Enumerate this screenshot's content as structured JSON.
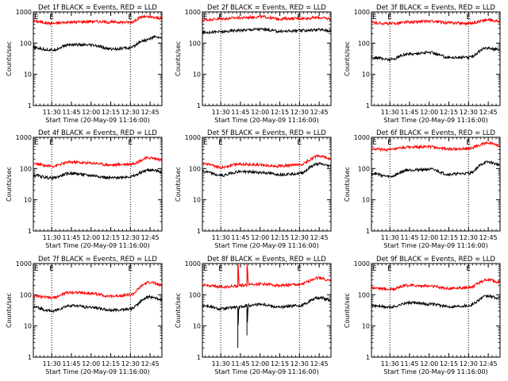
{
  "chart_data": [
    {
      "type": "line",
      "title": "Det 1f BLACK = Events, RED = LLD",
      "ylabel": "Counts/sec",
      "xlabel": "Start Time (20-May-09 11:16:00)",
      "xticks": [
        "11:30",
        "11:45",
        "12:00",
        "12:15",
        "12:30",
        "12:45"
      ],
      "yticks": [
        "1",
        "10",
        "100",
        "1000"
      ],
      "ylim": [
        1,
        1000
      ],
      "yscale": "log",
      "xlim": [
        "11:16",
        "12:54"
      ],
      "markers": [
        "11:30",
        "12:30"
      ],
      "marker_labels": [
        "E",
        "E"
      ],
      "series": [
        {
          "color": "#ff0000",
          "x": [
            "11:16",
            "11:30",
            "11:45",
            "12:00",
            "12:15",
            "12:30",
            "12:40",
            "12:50",
            "12:54"
          ],
          "values": [
            500,
            430,
            470,
            500,
            470,
            470,
            700,
            650,
            600
          ]
        },
        {
          "color": "#000000",
          "x": [
            "11:16",
            "11:30",
            "11:45",
            "12:00",
            "12:15",
            "12:30",
            "12:40",
            "12:50",
            "12:54"
          ],
          "values": [
            70,
            60,
            90,
            85,
            65,
            70,
            120,
            160,
            140
          ]
        }
      ]
    },
    {
      "type": "line",
      "title": "Det 2f BLACK = Events, RED = LLD",
      "ylabel": "Counts/sec",
      "xlabel": "Start Time (20-May-09 11:16:00)",
      "xticks": [
        "11:30",
        "11:45",
        "12:00",
        "12:15",
        "12:30",
        "12:45"
      ],
      "yticks": [
        "1",
        "10",
        "100",
        "1000"
      ],
      "ylim": [
        1,
        1000
      ],
      "yscale": "log",
      "xlim": [
        "11:16",
        "12:54"
      ],
      "markers": [
        "11:30",
        "12:30"
      ],
      "marker_labels": [
        "E",
        "E"
      ],
      "series": [
        {
          "color": "#ff0000",
          "x": [
            "11:16",
            "11:30",
            "11:45",
            "12:00",
            "12:15",
            "12:30",
            "12:45",
            "12:54"
          ],
          "values": [
            550,
            600,
            650,
            700,
            600,
            620,
            650,
            600
          ]
        },
        {
          "color": "#000000",
          "x": [
            "11:16",
            "11:30",
            "11:45",
            "12:00",
            "12:15",
            "12:30",
            "12:45",
            "12:54"
          ],
          "values": [
            220,
            230,
            260,
            280,
            240,
            250,
            270,
            250
          ]
        }
      ]
    },
    {
      "type": "line",
      "title": "Det 3f BLACK = Events, RED = LLD",
      "ylabel": "Counts/sec",
      "xlabel": "Start Time (20-May-09 11:16:00)",
      "xticks": [
        "11:30",
        "11:45",
        "12:00",
        "12:15",
        "12:30",
        "12:45"
      ],
      "yticks": [
        "1",
        "10",
        "100",
        "1000"
      ],
      "ylim": [
        1,
        1000
      ],
      "yscale": "log",
      "xlim": [
        "11:16",
        "12:54"
      ],
      "markers": [
        "11:30",
        "12:30"
      ],
      "marker_labels": [
        "E",
        "E"
      ],
      "series": [
        {
          "color": "#ff0000",
          "x": [
            "11:16",
            "11:30",
            "11:45",
            "12:00",
            "12:15",
            "12:30",
            "12:45",
            "12:54"
          ],
          "values": [
            450,
            420,
            470,
            500,
            450,
            430,
            550,
            500
          ]
        },
        {
          "color": "#000000",
          "x": [
            "11:16",
            "11:30",
            "11:45",
            "12:00",
            "12:15",
            "12:30",
            "12:45",
            "12:54"
          ],
          "values": [
            35,
            30,
            45,
            50,
            35,
            35,
            70,
            60
          ]
        }
      ]
    },
    {
      "type": "line",
      "title": "Det 4f BLACK = Events, RED = LLD",
      "ylabel": "Counts/sec",
      "xlabel": "Start Time (20-May-09 11:16:00)",
      "xticks": [
        "11:30",
        "11:45",
        "12:00",
        "12:15",
        "12:30",
        "12:45"
      ],
      "yticks": [
        "1",
        "10",
        "100",
        "1000"
      ],
      "ylim": [
        1,
        1000
      ],
      "yscale": "log",
      "xlim": [
        "11:16",
        "12:54"
      ],
      "markers": [
        "11:30",
        "12:30"
      ],
      "marker_labels": [
        "E",
        "E"
      ],
      "series": [
        {
          "color": "#ff0000",
          "x": [
            "11:16",
            "11:30",
            "11:45",
            "12:00",
            "12:15",
            "12:30",
            "12:45",
            "12:54"
          ],
          "values": [
            140,
            120,
            160,
            150,
            130,
            140,
            220,
            190
          ]
        },
        {
          "color": "#000000",
          "x": [
            "11:16",
            "11:30",
            "11:45",
            "12:00",
            "12:15",
            "12:30",
            "12:45",
            "12:54"
          ],
          "values": [
            60,
            50,
            70,
            60,
            50,
            55,
            90,
            80
          ]
        }
      ]
    },
    {
      "type": "line",
      "title": "Det 5f BLACK = Events, RED = LLD",
      "ylabel": "Counts/sec",
      "xlabel": "Start Time (20-May-09 11:16:00)",
      "xticks": [
        "11:30",
        "11:45",
        "12:00",
        "12:15",
        "12:30",
        "12:45"
      ],
      "yticks": [
        "1",
        "10",
        "100",
        "1000"
      ],
      "ylim": [
        1,
        1000
      ],
      "yscale": "log",
      "xlim": [
        "11:16",
        "12:54"
      ],
      "markers": [
        "11:30",
        "12:30"
      ],
      "marker_labels": [
        "E",
        "E"
      ],
      "series": [
        {
          "color": "#ff0000",
          "x": [
            "11:16",
            "11:30",
            "11:45",
            "12:00",
            "12:15",
            "12:30",
            "12:45",
            "12:54"
          ],
          "values": [
            140,
            110,
            140,
            130,
            120,
            130,
            250,
            200
          ]
        },
        {
          "color": "#000000",
          "x": [
            "11:16",
            "11:30",
            "11:45",
            "12:00",
            "12:15",
            "12:30",
            "12:45",
            "12:54"
          ],
          "values": [
            80,
            60,
            80,
            75,
            65,
            70,
            140,
            120
          ]
        }
      ]
    },
    {
      "type": "line",
      "title": "Det 6f BLACK = Events, RED = LLD",
      "ylabel": "Counts/sec",
      "xlabel": "Start Time (20-May-09 11:16:00)",
      "xticks": [
        "11:30",
        "11:45",
        "12:00",
        "12:15",
        "12:30",
        "12:45"
      ],
      "yticks": [
        "1",
        "10",
        "100",
        "1000"
      ],
      "ylim": [
        1,
        1000
      ],
      "yscale": "log",
      "xlim": [
        "11:16",
        "12:54"
      ],
      "markers": [
        "11:30",
        "12:30"
      ],
      "marker_labels": [
        "E",
        "E"
      ],
      "series": [
        {
          "color": "#ff0000",
          "x": [
            "11:16",
            "11:30",
            "11:45",
            "12:00",
            "12:15",
            "12:30",
            "12:45",
            "12:54"
          ],
          "values": [
            420,
            400,
            480,
            500,
            420,
            440,
            650,
            550
          ]
        },
        {
          "color": "#000000",
          "x": [
            "11:16",
            "11:30",
            "11:45",
            "12:00",
            "12:15",
            "12:30",
            "12:45",
            "12:54"
          ],
          "values": [
            70,
            55,
            90,
            95,
            65,
            70,
            160,
            130
          ]
        }
      ]
    },
    {
      "type": "line",
      "title": "Det 7f BLACK = Events, RED = LLD",
      "ylabel": "Counts/sec",
      "xlabel": "Start Time (20-May-09 11:16:00)",
      "xticks": [
        "11:30",
        "11:45",
        "12:00",
        "12:15",
        "12:30",
        "12:45"
      ],
      "yticks": [
        "1",
        "10",
        "100",
        "1000"
      ],
      "ylim": [
        1,
        1000
      ],
      "yscale": "log",
      "xlim": [
        "11:16",
        "12:54"
      ],
      "markers": [
        "11:30",
        "12:30"
      ],
      "marker_labels": [
        "E",
        "E"
      ],
      "series": [
        {
          "color": "#ff0000",
          "x": [
            "11:16",
            "11:30",
            "11:45",
            "12:00",
            "12:15",
            "12:30",
            "12:45",
            "12:54"
          ],
          "values": [
            90,
            80,
            120,
            110,
            90,
            100,
            250,
            200
          ]
        },
        {
          "color": "#000000",
          "x": [
            "11:16",
            "11:30",
            "11:45",
            "12:00",
            "12:15",
            "12:30",
            "12:45",
            "12:54"
          ],
          "values": [
            40,
            30,
            45,
            40,
            32,
            35,
            85,
            70
          ]
        }
      ]
    },
    {
      "type": "line",
      "title": "Det 8f BLACK = Events, RED = LLD",
      "ylabel": "Counts/sec",
      "xlabel": "Start Time (20-May-09 11:16:00)",
      "xticks": [
        "11:30",
        "11:45",
        "12:00",
        "12:15",
        "12:30",
        "12:45"
      ],
      "yticks": [
        "1",
        "10",
        "100",
        "1000"
      ],
      "ylim": [
        1,
        1000
      ],
      "yscale": "log",
      "xlim": [
        "11:16",
        "12:54"
      ],
      "markers": [
        "11:30",
        "12:30"
      ],
      "marker_labels": [
        "E",
        "E"
      ],
      "series": [
        {
          "color": "#ff0000",
          "x": [
            "11:16",
            "11:30",
            "11:43",
            "11:43",
            "11:44",
            "11:50",
            "11:50",
            "11:51",
            "12:00",
            "12:15",
            "12:30",
            "12:45",
            "12:54"
          ],
          "values": [
            200,
            180,
            190,
            1000,
            200,
            200,
            1000,
            220,
            220,
            200,
            210,
            350,
            280
          ]
        },
        {
          "color": "#000000",
          "x": [
            "11:16",
            "11:30",
            "11:43",
            "11:43",
            "11:44",
            "11:50",
            "11:50",
            "11:51",
            "12:00",
            "12:15",
            "12:30",
            "12:45",
            "12:54"
          ],
          "values": [
            45,
            35,
            40,
            2,
            40,
            45,
            5,
            45,
            50,
            40,
            45,
            80,
            70
          ]
        }
      ]
    },
    {
      "type": "line",
      "title": "Det 9f BLACK = Events, RED = LLD",
      "ylabel": "Counts/sec",
      "xlabel": "Start Time (20-May-09 11:16:00)",
      "xticks": [
        "11:30",
        "11:45",
        "12:00",
        "12:15",
        "12:30",
        "12:45"
      ],
      "yticks": [
        "1",
        "10",
        "100",
        "1000"
      ],
      "ylim": [
        1,
        1000
      ],
      "yscale": "log",
      "xlim": [
        "11:16",
        "12:54"
      ],
      "markers": [
        "11:30",
        "12:30"
      ],
      "marker_labels": [
        "E",
        "E"
      ],
      "series": [
        {
          "color": "#ff0000",
          "x": [
            "11:16",
            "11:30",
            "11:45",
            "12:00",
            "12:15",
            "12:30",
            "12:45",
            "12:54"
          ],
          "values": [
            170,
            150,
            200,
            190,
            160,
            170,
            300,
            250
          ]
        },
        {
          "color": "#000000",
          "x": [
            "11:16",
            "11:30",
            "11:45",
            "12:00",
            "12:15",
            "12:30",
            "12:45",
            "12:54"
          ],
          "values": [
            45,
            40,
            55,
            50,
            42,
            45,
            90,
            75
          ]
        }
      ]
    }
  ]
}
